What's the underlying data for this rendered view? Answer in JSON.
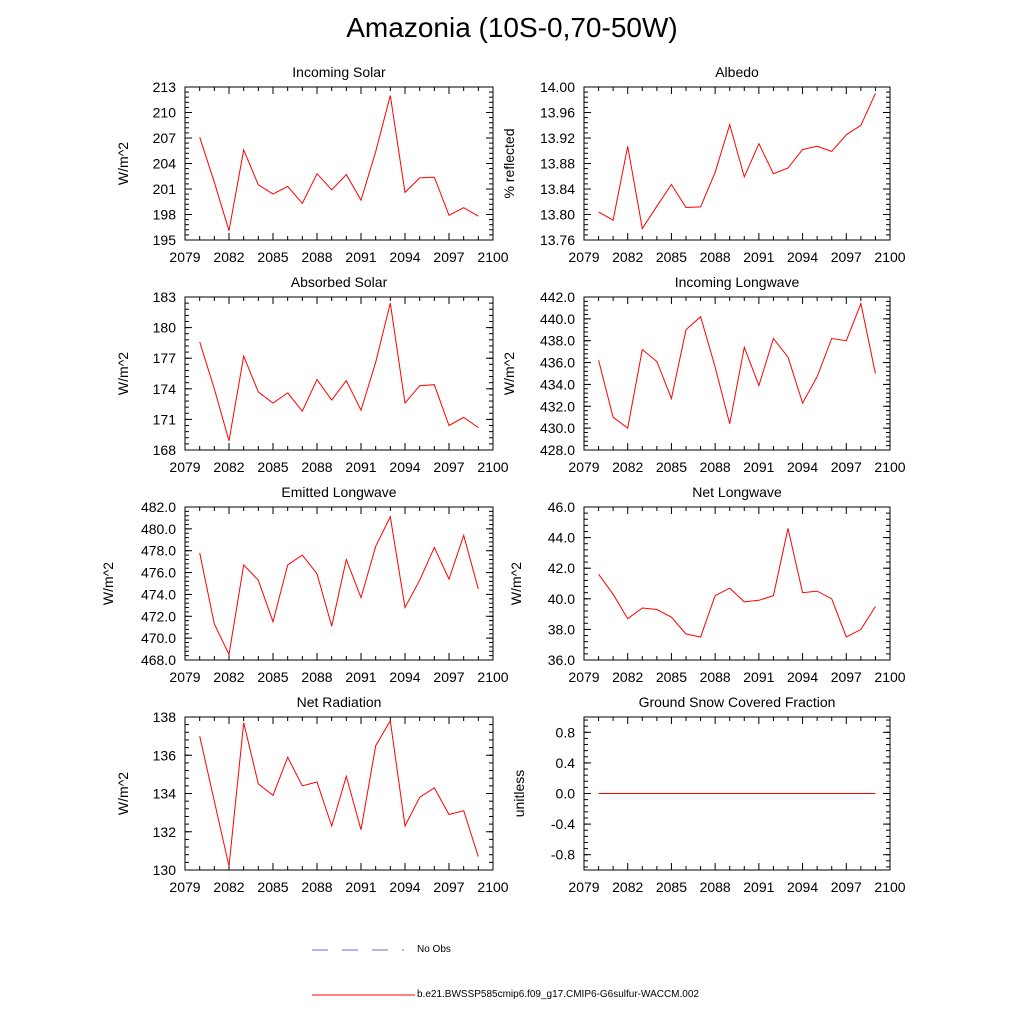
{
  "title": "Amazonia (10S-0,70-50W)",
  "legend": [
    {
      "label": "No Obs",
      "color": "#6b6bcf",
      "dash": true
    },
    {
      "label": "b.e21.BWSSP585cmip6.f09_g17.CMIP6-G6sulfur-WACCM.002",
      "color": "#ff0000",
      "dash": false
    }
  ],
  "chart_data": [
    {
      "type": "line",
      "title": "Incoming Solar",
      "ylabel": "W/m^2",
      "xlim": [
        2079,
        2100
      ],
      "xticks": [
        "2079",
        "2082",
        "2085",
        "2088",
        "2091",
        "2094",
        "2097",
        "2100"
      ],
      "ylim": [
        195,
        213
      ],
      "yticks": [
        "195",
        "198",
        "201",
        "204",
        "207",
        "210",
        "213"
      ],
      "series": [
        {
          "color": "#ff0000",
          "x": [
            2080,
            2081,
            2082,
            2083,
            2084,
            2085,
            2086,
            2087,
            2088,
            2089,
            2090,
            2091,
            2092,
            2093,
            2094,
            2095,
            2096,
            2097,
            2098,
            2099
          ],
          "y": [
            207.1,
            201.8,
            196.1,
            205.6,
            201.5,
            200.4,
            201.3,
            199.3,
            202.8,
            200.9,
            202.7,
            199.7,
            205.4,
            212.0,
            200.6,
            202.3,
            202.4,
            197.9,
            198.8,
            197.8
          ]
        }
      ]
    },
    {
      "type": "line",
      "title": "Albedo",
      "ylabel": "% reflected",
      "xlim": [
        2079,
        2100
      ],
      "xticks": [
        "2079",
        "2082",
        "2085",
        "2088",
        "2091",
        "2094",
        "2097",
        "2100"
      ],
      "ylim": [
        13.76,
        14.0
      ],
      "yticks": [
        "13.76",
        "13.80",
        "13.84",
        "13.88",
        "13.92",
        "13.96",
        "14.00"
      ],
      "series": [
        {
          "color": "#ff0000",
          "x": [
            2080,
            2081,
            2082,
            2083,
            2084,
            2085,
            2086,
            2087,
            2088,
            2089,
            2090,
            2091,
            2092,
            2093,
            2094,
            2095,
            2096,
            2097,
            2098,
            2099
          ],
          "y": [
            13.804,
            13.791,
            13.907,
            13.778,
            13.813,
            13.847,
            13.811,
            13.812,
            13.866,
            13.941,
            13.859,
            13.911,
            13.864,
            13.873,
            13.902,
            13.907,
            13.899,
            13.925,
            13.94,
            13.99
          ]
        }
      ]
    },
    {
      "type": "line",
      "title": "Absorbed Solar",
      "ylabel": "W/m^2",
      "xlim": [
        2079,
        2100
      ],
      "xticks": [
        "2079",
        "2082",
        "2085",
        "2088",
        "2091",
        "2094",
        "2097",
        "2100"
      ],
      "ylim": [
        168,
        183
      ],
      "yticks": [
        "168",
        "171",
        "174",
        "177",
        "180",
        "183"
      ],
      "series": [
        {
          "color": "#ff0000",
          "x": [
            2080,
            2081,
            2082,
            2083,
            2084,
            2085,
            2086,
            2087,
            2088,
            2089,
            2090,
            2091,
            2092,
            2093,
            2094,
            2095,
            2096,
            2097,
            2098,
            2099
          ],
          "y": [
            178.6,
            174.0,
            168.9,
            177.2,
            173.7,
            172.6,
            173.6,
            171.8,
            174.9,
            172.9,
            174.8,
            171.9,
            176.6,
            182.4,
            172.6,
            174.3,
            174.4,
            170.4,
            171.2,
            170.2
          ]
        }
      ]
    },
    {
      "type": "line",
      "title": "Incoming Longwave",
      "ylabel": "W/m^2",
      "xlim": [
        2079,
        2100
      ],
      "xticks": [
        "2079",
        "2082",
        "2085",
        "2088",
        "2091",
        "2094",
        "2097",
        "2100"
      ],
      "ylim": [
        428.0,
        442.0
      ],
      "yticks": [
        "428.0",
        "430.0",
        "432.0",
        "434.0",
        "436.0",
        "438.0",
        "440.0",
        "442.0"
      ],
      "series": [
        {
          "color": "#ff0000",
          "x": [
            2080,
            2081,
            2082,
            2083,
            2084,
            2085,
            2086,
            2087,
            2088,
            2089,
            2090,
            2091,
            2092,
            2093,
            2094,
            2095,
            2096,
            2097,
            2098,
            2099
          ],
          "y": [
            436.2,
            431.0,
            430.0,
            437.2,
            436.1,
            432.7,
            439.0,
            440.2,
            435.6,
            430.4,
            437.4,
            433.9,
            438.2,
            436.5,
            432.3,
            434.7,
            438.2,
            438.0,
            441.4,
            435.0
          ]
        }
      ]
    },
    {
      "type": "line",
      "title": "Emitted Longwave",
      "ylabel": "W/m^2",
      "xlim": [
        2079,
        2100
      ],
      "xticks": [
        "2079",
        "2082",
        "2085",
        "2088",
        "2091",
        "2094",
        "2097",
        "2100"
      ],
      "ylim": [
        468.0,
        482.0
      ],
      "yticks": [
        "468.0",
        "470.0",
        "472.0",
        "474.0",
        "476.0",
        "478.0",
        "480.0",
        "482.0"
      ],
      "series": [
        {
          "color": "#ff0000",
          "x": [
            2080,
            2081,
            2082,
            2083,
            2084,
            2085,
            2086,
            2087,
            2088,
            2089,
            2090,
            2091,
            2092,
            2093,
            2094,
            2095,
            2096,
            2097,
            2098,
            2099
          ],
          "y": [
            477.8,
            471.3,
            468.5,
            476.7,
            475.3,
            471.5,
            476.7,
            477.6,
            475.9,
            471.1,
            477.2,
            473.7,
            478.4,
            481.1,
            472.8,
            475.3,
            478.3,
            475.4,
            479.4,
            474.5
          ]
        }
      ]
    },
    {
      "type": "line",
      "title": "Net Longwave",
      "ylabel": "W/m^2",
      "xlim": [
        2079,
        2100
      ],
      "xticks": [
        "2079",
        "2082",
        "2085",
        "2088",
        "2091",
        "2094",
        "2097",
        "2100"
      ],
      "ylim": [
        36.0,
        46.0
      ],
      "yticks": [
        "36.0",
        "38.0",
        "40.0",
        "42.0",
        "44.0",
        "46.0"
      ],
      "series": [
        {
          "color": "#ff0000",
          "x": [
            2080,
            2081,
            2082,
            2083,
            2084,
            2085,
            2086,
            2087,
            2088,
            2089,
            2090,
            2091,
            2092,
            2093,
            2094,
            2095,
            2096,
            2097,
            2098,
            2099
          ],
          "y": [
            41.6,
            40.3,
            38.7,
            39.4,
            39.3,
            38.8,
            37.7,
            37.5,
            40.2,
            40.7,
            39.8,
            39.9,
            40.2,
            44.6,
            40.4,
            40.5,
            40.0,
            37.5,
            38.0,
            39.5
          ]
        }
      ]
    },
    {
      "type": "line",
      "title": "Net Radiation",
      "ylabel": "W/m^2",
      "xlim": [
        2079,
        2100
      ],
      "xticks": [
        "2079",
        "2082",
        "2085",
        "2088",
        "2091",
        "2094",
        "2097",
        "2100"
      ],
      "ylim": [
        130,
        138
      ],
      "yticks": [
        "130",
        "132",
        "134",
        "136",
        "138"
      ],
      "series": [
        {
          "color": "#ff0000",
          "x": [
            2080,
            2081,
            2082,
            2083,
            2084,
            2085,
            2086,
            2087,
            2088,
            2089,
            2090,
            2091,
            2092,
            2093,
            2094,
            2095,
            2096,
            2097,
            2098,
            2099
          ],
          "y": [
            137.0,
            133.6,
            130.2,
            137.7,
            134.5,
            133.9,
            135.9,
            134.4,
            134.6,
            132.3,
            134.9,
            132.1,
            136.5,
            137.8,
            132.3,
            133.8,
            134.3,
            132.9,
            133.1,
            130.7
          ]
        }
      ]
    },
    {
      "type": "line",
      "title": "Ground Snow Covered Fraction",
      "ylabel": "unitless",
      "xlim": [
        2079,
        2100
      ],
      "xticks": [
        "2079",
        "2082",
        "2085",
        "2088",
        "2091",
        "2094",
        "2097",
        "2100"
      ],
      "ylim": [
        -1.0,
        1.0
      ],
      "yticks": [
        "-0.8",
        "-0.4",
        "0.0",
        "0.4",
        "0.8"
      ],
      "series": [
        {
          "color": "#ff0000",
          "x": [
            2080,
            2099
          ],
          "y": [
            0.0,
            0.0
          ]
        }
      ]
    }
  ]
}
